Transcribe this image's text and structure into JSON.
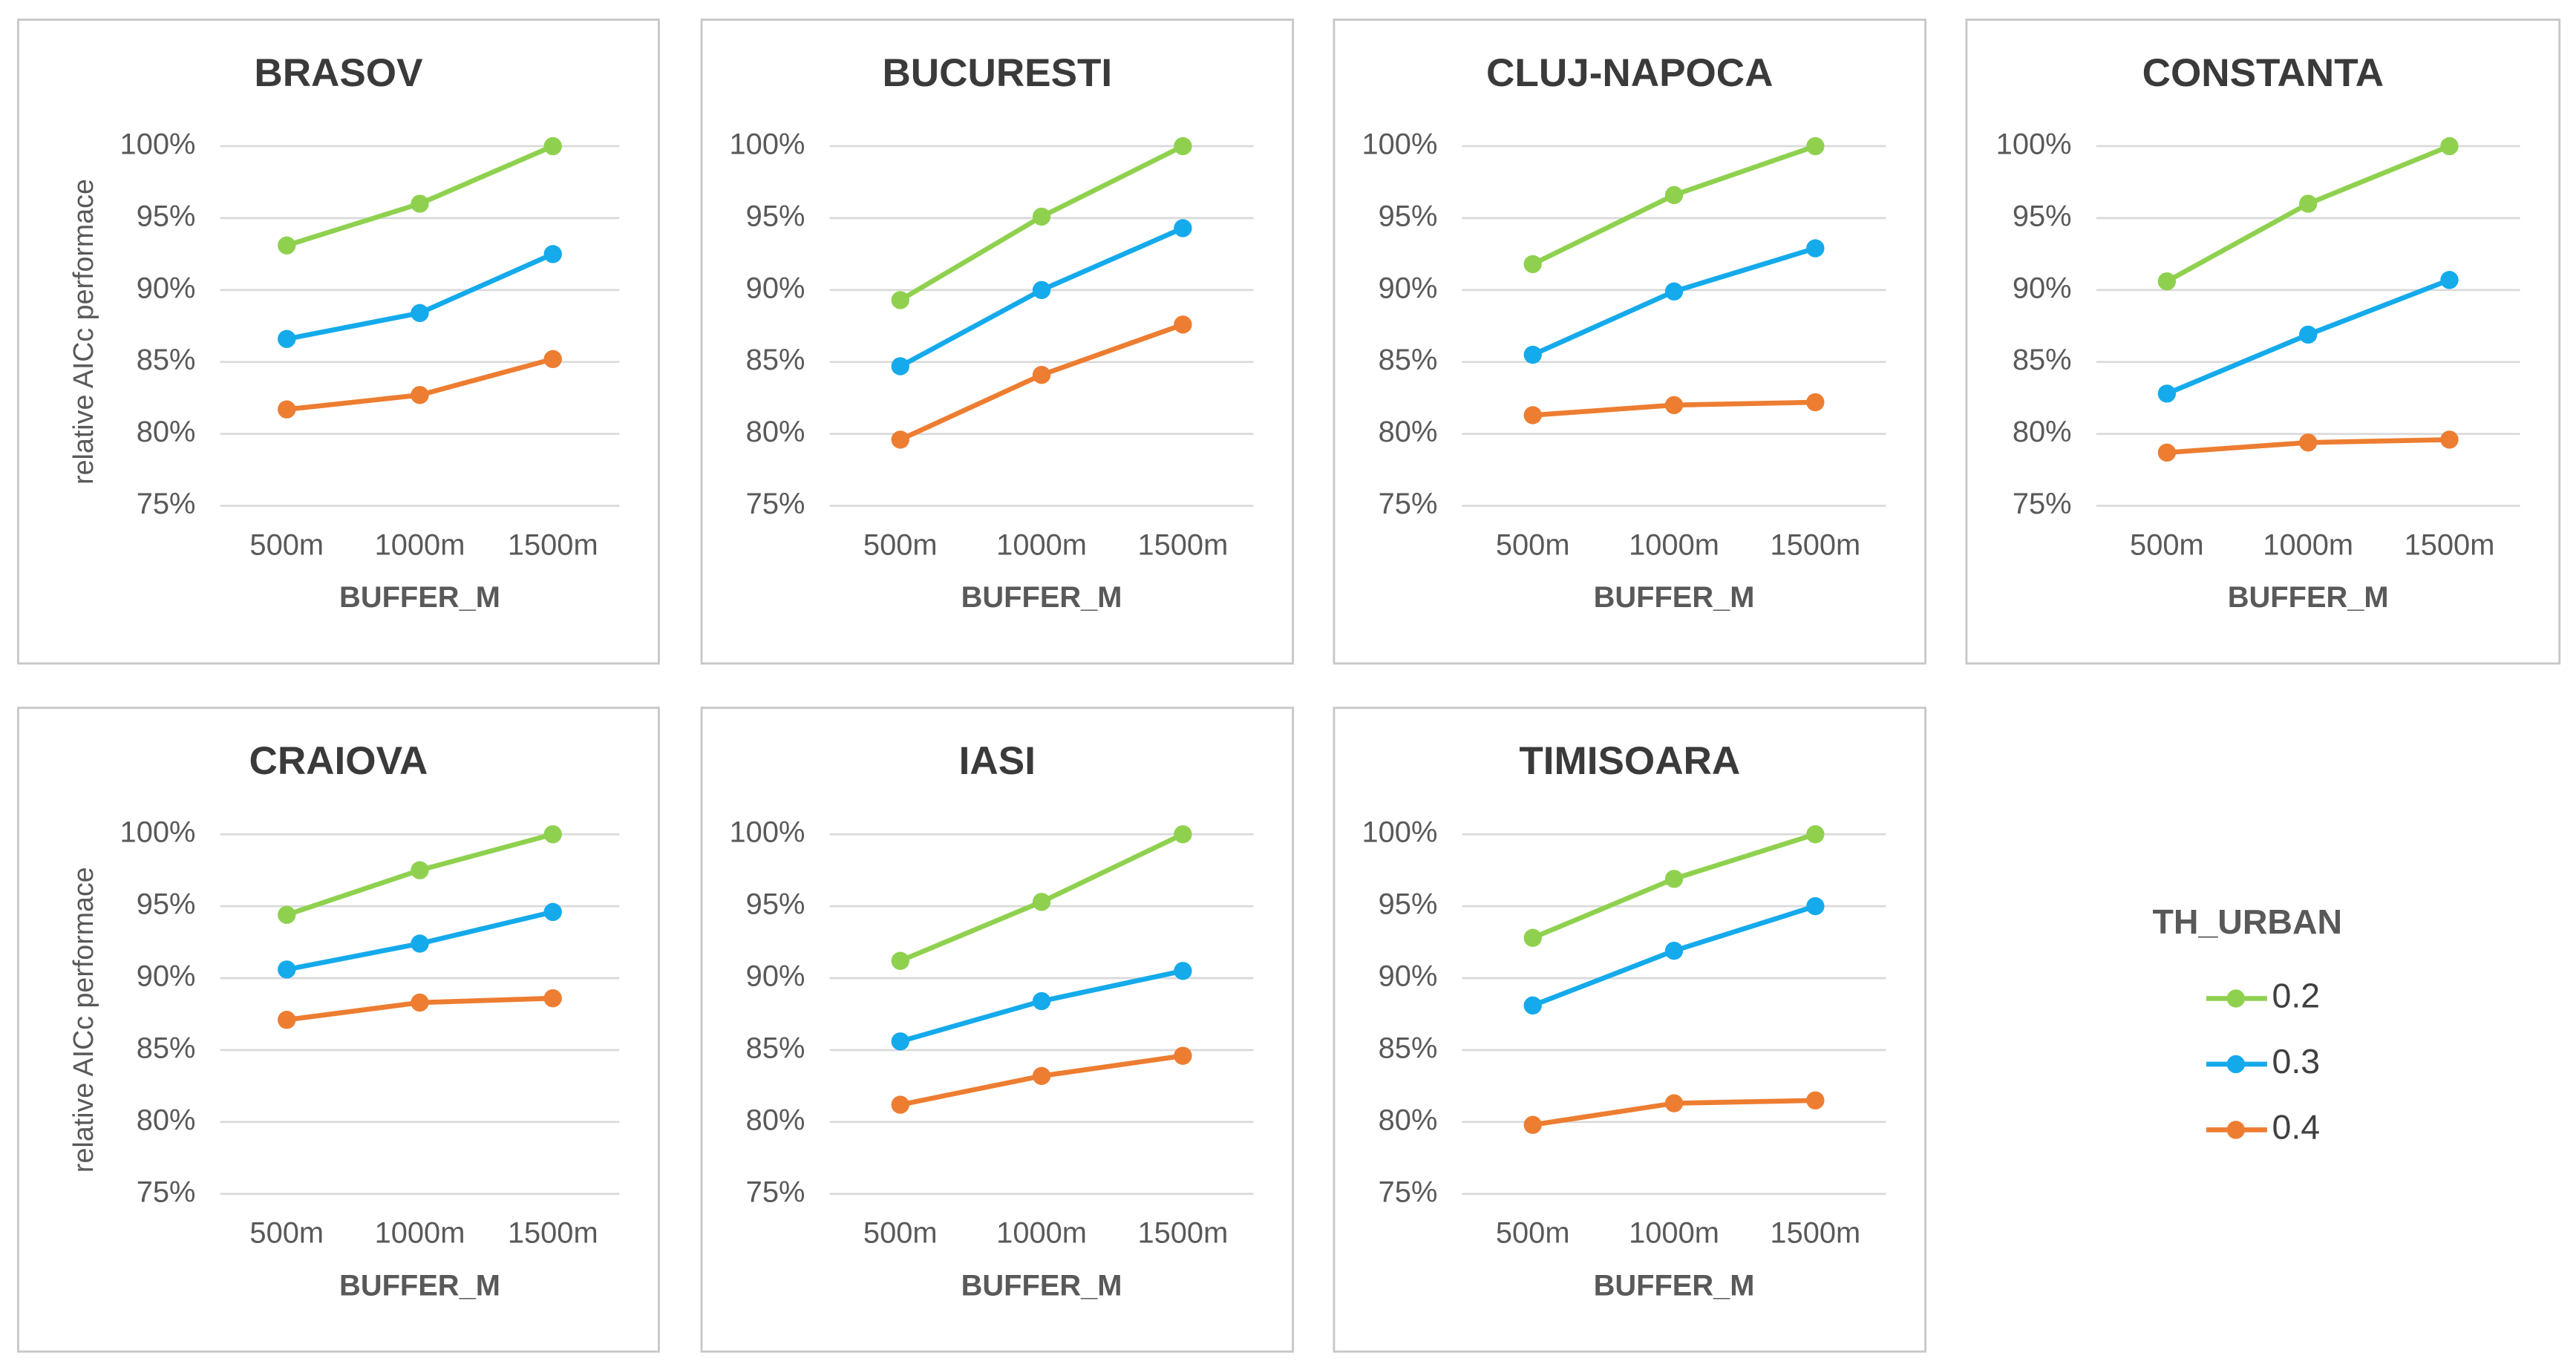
{
  "chart_data": [
    {
      "type": "line",
      "title": "BRASOV",
      "x_label": "BUFFER_M",
      "y_label": "relative AICc performace",
      "categories": [
        "500m",
        "1000m",
        "1500m"
      ],
      "series": [
        {
          "name": "0.2",
          "color": "#8fd14f",
          "values": [
            93.1,
            96.0,
            100
          ]
        },
        {
          "name": "0.3",
          "color": "#14aaeb",
          "values": [
            86.6,
            88.4,
            92.5
          ]
        },
        {
          "name": "0.4",
          "color": "#ed7d31",
          "values": [
            81.7,
            82.7,
            85.2
          ]
        }
      ],
      "ylim": [
        75,
        100
      ],
      "yticks": [
        {
          "value": 75,
          "label": "75%"
        },
        {
          "value": 80,
          "label": "80%"
        },
        {
          "value": 85,
          "label": "85%"
        },
        {
          "value": 90,
          "label": "90%"
        },
        {
          "value": 95,
          "label": "95%"
        },
        {
          "value": 100,
          "label": "100%"
        }
      ],
      "grid": true
    },
    {
      "type": "line",
      "title": "BUCURESTI",
      "x_label": "BUFFER_M",
      "categories": [
        "500m",
        "1000m",
        "1500m"
      ],
      "series": [
        {
          "color": "#8fd14f",
          "values": [
            89.3,
            95.1,
            100
          ]
        },
        {
          "color": "#14aaeb",
          "values": [
            84.7,
            90.0,
            94.3
          ]
        },
        {
          "color": "#ed7d31",
          "values": [
            79.6,
            84.1,
            87.6
          ]
        }
      ],
      "ylim": [
        75,
        100
      ],
      "yticks": [
        {
          "value": 75,
          "label": "75%"
        },
        {
          "value": 80,
          "label": "80%"
        },
        {
          "value": 85,
          "label": "85%"
        },
        {
          "value": 90,
          "label": "90%"
        },
        {
          "value": 95,
          "label": "95%"
        },
        {
          "value": 100,
          "label": "100%"
        }
      ],
      "grid": true
    },
    {
      "type": "line",
      "title": "CLUJ-NAPOCA",
      "x_label": "BUFFER_M",
      "categories": [
        "500m",
        "1000m",
        "1500m"
      ],
      "series": [
        {
          "color": "#8fd14f",
          "values": [
            91.8,
            96.6,
            100
          ]
        },
        {
          "color": "#14aaeb",
          "values": [
            85.5,
            89.9,
            92.9
          ]
        },
        {
          "color": "#ed7d31",
          "values": [
            81.3,
            82.0,
            82.2
          ]
        }
      ],
      "ylim": [
        75,
        100
      ],
      "yticks": [
        {
          "value": 75,
          "label": "75%"
        },
        {
          "value": 80,
          "label": "80%"
        },
        {
          "value": 85,
          "label": "85%"
        },
        {
          "value": 90,
          "label": "90%"
        },
        {
          "value": 95,
          "label": "95%"
        },
        {
          "value": 100,
          "label": "100%"
        }
      ],
      "grid": true
    },
    {
      "type": "line",
      "title": "CONSTANTA",
      "x_label": "BUFFER_M",
      "categories": [
        "500m",
        "1000m",
        "1500m"
      ],
      "series": [
        {
          "color": "#8fd14f",
          "values": [
            90.6,
            96.0,
            100
          ]
        },
        {
          "color": "#14aaeb",
          "values": [
            82.8,
            86.9,
            90.7
          ]
        },
        {
          "color": "#ed7d31",
          "values": [
            78.7,
            79.4,
            79.6
          ]
        }
      ],
      "ylim": [
        75,
        100
      ],
      "yticks": [
        {
          "value": 75,
          "label": "75%"
        },
        {
          "value": 80,
          "label": "80%"
        },
        {
          "value": 85,
          "label": "85%"
        },
        {
          "value": 90,
          "label": "90%"
        },
        {
          "value": 95,
          "label": "95%"
        },
        {
          "value": 100,
          "label": "100%"
        }
      ],
      "grid": true
    },
    {
      "type": "line",
      "title": "CRAIOVA",
      "x_label": "BUFFER_M",
      "y_label": "relative AICc performace",
      "categories": [
        "500m",
        "1000m",
        "1500m"
      ],
      "series": [
        {
          "color": "#8fd14f",
          "values": [
            94.4,
            97.5,
            100
          ]
        },
        {
          "color": "#14aaeb",
          "values": [
            90.6,
            92.4,
            94.6
          ]
        },
        {
          "color": "#ed7d31",
          "values": [
            87.1,
            88.3,
            88.6
          ]
        }
      ],
      "ylim": [
        75,
        100
      ],
      "yticks": [
        {
          "value": 75,
          "label": "75%"
        },
        {
          "value": 80,
          "label": "80%"
        },
        {
          "value": 85,
          "label": "85%"
        },
        {
          "value": 90,
          "label": "90%"
        },
        {
          "value": 95,
          "label": "95%"
        },
        {
          "value": 100,
          "label": "100%"
        }
      ],
      "grid": true
    },
    {
      "type": "line",
      "title": "IASI",
      "x_label": "BUFFER_M",
      "categories": [
        "500m",
        "1000m",
        "1500m"
      ],
      "series": [
        {
          "color": "#8fd14f",
          "values": [
            91.2,
            95.3,
            100
          ]
        },
        {
          "color": "#14aaeb",
          "values": [
            85.6,
            88.4,
            90.5
          ]
        },
        {
          "color": "#ed7d31",
          "values": [
            81.2,
            83.2,
            84.6
          ]
        }
      ],
      "ylim": [
        75,
        100
      ],
      "yticks": [
        {
          "value": 75,
          "label": "75%"
        },
        {
          "value": 80,
          "label": "80%"
        },
        {
          "value": 85,
          "label": "85%"
        },
        {
          "value": 90,
          "label": "90%"
        },
        {
          "value": 95,
          "label": "95%"
        },
        {
          "value": 100,
          "label": "100%"
        }
      ],
      "grid": true
    },
    {
      "type": "line",
      "title": "TIMISOARA",
      "x_label": "BUFFER_M",
      "categories": [
        "500m",
        "1000m",
        "1500m"
      ],
      "series": [
        {
          "color": "#8fd14f",
          "values": [
            92.8,
            96.9,
            100
          ]
        },
        {
          "color": "#14aaeb",
          "values": [
            88.1,
            91.9,
            95.0
          ]
        },
        {
          "color": "#ed7d31",
          "values": [
            79.8,
            81.3,
            81.5
          ]
        }
      ],
      "ylim": [
        75,
        100
      ],
      "yticks": [
        {
          "value": 75,
          "label": "75%"
        },
        {
          "value": 80,
          "label": "80%"
        },
        {
          "value": 85,
          "label": "85%"
        },
        {
          "value": 90,
          "label": "90%"
        },
        {
          "value": 95,
          "label": "95%"
        },
        {
          "value": 100,
          "label": "100%"
        }
      ],
      "grid": true
    }
  ],
  "legend": {
    "title": "TH_URBAN"
  }
}
